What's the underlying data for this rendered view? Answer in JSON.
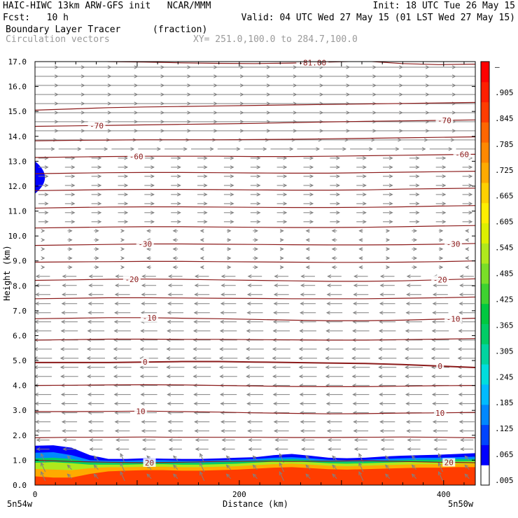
{
  "header": {
    "title_left": "HAIC-HIWC 13km ARW-GFS init   NCAR/MMM",
    "init": "Init: 18 UTC Tue 26 May 15",
    "fcst_label": "Fcst:",
    "fcst_value": "10 h",
    "valid": "Valid: 04 UTC Wed 27 May 15 (01 LST Wed 27 May 15)",
    "field_name": "Boundary Layer Tracer",
    "field_units": "(fraction)",
    "vector_label": "Circulation vectors",
    "xy_label": "XY= 251.0,100.0 to 284.7,100.0"
  },
  "colors": {
    "contour": "#8b1a1a",
    "vector": "#808080",
    "frame": "#000000"
  },
  "chart_data": {
    "type": "heatmap",
    "xlabel": "Distance (km)",
    "ylabel": "Height (km)",
    "xlim": [
      0,
      431
    ],
    "ylim": [
      0,
      17
    ],
    "x_ticks": [
      {
        "v": 0,
        "label": "0"
      },
      {
        "v": 200,
        "label": "200"
      },
      {
        "v": 400,
        "label": "400"
      }
    ],
    "y_ticks": [
      "0.0",
      "1.0",
      "2.0",
      "3.0",
      "4.0",
      "5.0",
      "6.0",
      "7.0",
      "8.0",
      "9.0",
      "10.0",
      "11.0",
      "12.0",
      "13.0",
      "14.0",
      "15.0",
      "16.0",
      "17.0"
    ],
    "x_end_labels": [
      "5n54w",
      "5n50w"
    ],
    "colorbar": {
      "labels": [
        ".005",
        ".065",
        ".125",
        ".185",
        ".245",
        ".305",
        ".365",
        ".425",
        ".485",
        ".545",
        ".605",
        ".665",
        ".725",
        ".785",
        ".845",
        ".905",
        "–"
      ],
      "colors": [
        "#ffffff",
        "#0000ff",
        "#0044ff",
        "#0088ff",
        "#00bbff",
        "#00dddd",
        "#00d4a0",
        "#00cc66",
        "#00c840",
        "#3ed230",
        "#7ade28",
        "#b0e81c",
        "#ddf000",
        "#ffee00",
        "#ffd000",
        "#ffaa00",
        "#ff8800",
        "#ff6600",
        "#ff3c00",
        "#ff1e00",
        "#ff0000"
      ]
    },
    "contours": [
      {
        "label": "20",
        "y": [
          1.0,
          0.95,
          0.92,
          0.9,
          0.92,
          0.95,
          0.96,
          0.95,
          0.96,
          0.98,
          0.95,
          0.92,
          0.9
        ],
        "label_at": [
          0.26,
          0.94
        ]
      },
      {
        "label": "",
        "y": [
          1.9,
          1.92,
          1.92,
          1.93,
          1.92,
          1.92,
          1.92,
          1.91,
          1.91,
          1.92,
          1.93,
          1.92,
          1.9
        ],
        "label_at": []
      },
      {
        "label": "10",
        "y": [
          2.95,
          2.95,
          2.96,
          2.97,
          2.95,
          2.93,
          2.9,
          2.88,
          2.86,
          2.87,
          2.89,
          2.9,
          2.92
        ],
        "label_at": [
          0.24,
          0.92
        ]
      },
      {
        "label": "",
        "y": [
          4.0,
          4.01,
          4.02,
          4.03,
          4.02,
          4.0,
          3.98,
          3.96,
          3.95,
          3.95,
          3.97,
          3.99,
          4.0
        ],
        "label_at": []
      },
      {
        "label": "0",
        "y": [
          4.92,
          4.92,
          4.92,
          4.94,
          4.96,
          4.96,
          4.94,
          4.92,
          4.9,
          4.88,
          4.84,
          4.78,
          4.72
        ],
        "label_at": [
          0.25,
          0.92
        ]
      },
      {
        "label": "",
        "y": [
          5.82,
          5.84,
          5.86,
          5.86,
          5.85,
          5.85,
          5.84,
          5.83,
          5.82,
          5.82,
          5.84,
          5.86,
          5.88
        ],
        "label_at": []
      },
      {
        "label": "-10",
        "y": [
          6.68,
          6.7,
          6.72,
          6.72,
          6.7,
          6.68,
          6.65,
          6.62,
          6.6,
          6.6,
          6.62,
          6.66,
          6.7
        ],
        "label_at": [
          0.26,
          0.95
        ]
      },
      {
        "label": "",
        "y": [
          7.48,
          7.5,
          7.52,
          7.52,
          7.51,
          7.5,
          7.49,
          7.48,
          7.48,
          7.48,
          7.5,
          7.52,
          7.55
        ],
        "label_at": []
      },
      {
        "label": "-20",
        "y": [
          8.22,
          8.24,
          8.26,
          8.27,
          8.26,
          8.24,
          8.22,
          8.2,
          8.18,
          8.18,
          8.2,
          8.24,
          8.28
        ],
        "label_at": [
          0.22,
          0.92
        ]
      },
      {
        "label": "",
        "y": [
          8.95,
          8.96,
          8.97,
          8.98,
          8.98,
          8.97,
          8.96,
          8.95,
          8.94,
          8.94,
          8.95,
          8.97,
          9.0
        ],
        "label_at": []
      },
      {
        "label": "-30",
        "y": [
          9.62,
          9.64,
          9.66,
          9.68,
          9.68,
          9.67,
          9.66,
          9.65,
          9.64,
          9.64,
          9.65,
          9.67,
          9.7
        ],
        "label_at": [
          0.25,
          0.95
        ]
      },
      {
        "label": "",
        "y": [
          10.32,
          10.34,
          10.36,
          10.37,
          10.37,
          10.36,
          10.35,
          10.34,
          10.34,
          10.35,
          10.37,
          10.4,
          10.42
        ],
        "label_at": []
      },
      {
        "label": "",
        "y": [
          11.12,
          11.14,
          11.16,
          11.17,
          11.17,
          11.16,
          11.15,
          11.14,
          11.14,
          11.15,
          11.17,
          11.2,
          11.22
        ],
        "label_at": []
      },
      {
        "label": "",
        "y": [
          11.82,
          11.84,
          11.86,
          11.87,
          11.87,
          11.86,
          11.85,
          11.84,
          11.84,
          11.85,
          11.88,
          11.9,
          11.92
        ],
        "label_at": []
      },
      {
        "label": "",
        "y": [
          12.5,
          12.52,
          12.54,
          12.55,
          12.55,
          12.54,
          12.53,
          12.52,
          12.52,
          12.54,
          12.56,
          12.58,
          12.6
        ],
        "label_at": []
      },
      {
        "label": "-60",
        "y": [
          13.15,
          13.17,
          13.19,
          13.2,
          13.2,
          13.2,
          13.19,
          13.19,
          13.2,
          13.22,
          13.24,
          13.26,
          13.28
        ],
        "label_at": [
          0.23,
          0.97
        ]
      },
      {
        "label": "",
        "y": [
          13.82,
          13.84,
          13.85,
          13.86,
          13.86,
          13.86,
          13.87,
          13.88,
          13.9,
          13.92,
          13.94,
          13.96,
          13.98
        ],
        "label_at": []
      },
      {
        "label": "-70",
        "y": [
          14.4,
          14.42,
          14.44,
          14.46,
          14.48,
          14.5,
          14.52,
          14.55,
          14.58,
          14.6,
          14.62,
          14.64,
          14.66
        ],
        "label_at": [
          0.14,
          0.93
        ]
      },
      {
        "label": "",
        "y": [
          15.05,
          15.1,
          15.15,
          15.18,
          15.2,
          15.22,
          15.24,
          15.26,
          15.28,
          15.3,
          15.32,
          15.34,
          15.36
        ],
        "label_at": []
      },
      {
        "label": "-81.00",
        "y": [
          17.2,
          17.1,
          17.0,
          16.98,
          16.95,
          16.93,
          16.92,
          16.94,
          16.98,
          17.02,
          16.92,
          16.88,
          16.9
        ],
        "label_at": [
          0.63
        ]
      }
    ],
    "tracer_bands": [
      {
        "value": 0.05,
        "top": [
          1.58,
          1.6,
          1.5,
          1.2,
          1.05,
          1.05,
          1.08,
          1.06,
          1.05,
          1.05,
          1.07,
          1.1,
          1.12,
          1.2,
          1.25,
          1.18,
          1.1,
          1.08,
          1.1,
          1.15,
          1.18,
          1.2,
          1.22,
          1.25,
          1.28
        ]
      },
      {
        "value": 0.15,
        "top": [
          1.3,
          1.32,
          1.2,
          1.0,
          0.98,
          0.98,
          1.0,
          1.0,
          0.98,
          0.98,
          1.0,
          1.02,
          1.05,
          1.1,
          1.12,
          1.08,
          1.02,
          1.0,
          1.02,
          1.05,
          1.08,
          1.1,
          1.1,
          1.12,
          1.14
        ]
      },
      {
        "value": 0.35,
        "top": [
          1.08,
          1.1,
          1.05,
          0.92,
          0.9,
          0.9,
          0.92,
          0.92,
          0.9,
          0.9,
          0.92,
          0.95,
          0.98,
          1.02,
          1.04,
          1.0,
          0.95,
          0.94,
          0.95,
          0.98,
          1.0,
          1.02,
          1.02,
          1.04,
          1.05
        ]
      },
      {
        "value": 0.55,
        "top": [
          0.9,
          0.92,
          0.88,
          0.82,
          0.82,
          0.82,
          0.84,
          0.84,
          0.82,
          0.82,
          0.84,
          0.86,
          0.9,
          0.94,
          0.96,
          0.92,
          0.88,
          0.86,
          0.88,
          0.9,
          0.92,
          0.94,
          0.94,
          0.95,
          0.96
        ]
      },
      {
        "value": 0.75,
        "top": [
          0.65,
          0.62,
          0.6,
          0.68,
          0.72,
          0.72,
          0.74,
          0.74,
          0.72,
          0.72,
          0.74,
          0.76,
          0.8,
          0.84,
          0.86,
          0.82,
          0.78,
          0.76,
          0.78,
          0.8,
          0.82,
          0.84,
          0.84,
          0.85,
          0.86
        ]
      },
      {
        "value": 0.92,
        "top": [
          0.35,
          0.3,
          0.3,
          0.45,
          0.55,
          0.58,
          0.6,
          0.6,
          0.58,
          0.58,
          0.6,
          0.62,
          0.66,
          0.7,
          0.72,
          0.68,
          0.64,
          0.62,
          0.64,
          0.66,
          0.68,
          0.7,
          0.7,
          0.72,
          0.72
        ]
      }
    ],
    "upper_blob": {
      "value": 0.05,
      "x": [
        0,
        14
      ],
      "y": [
        11.7,
        13.0
      ]
    }
  }
}
